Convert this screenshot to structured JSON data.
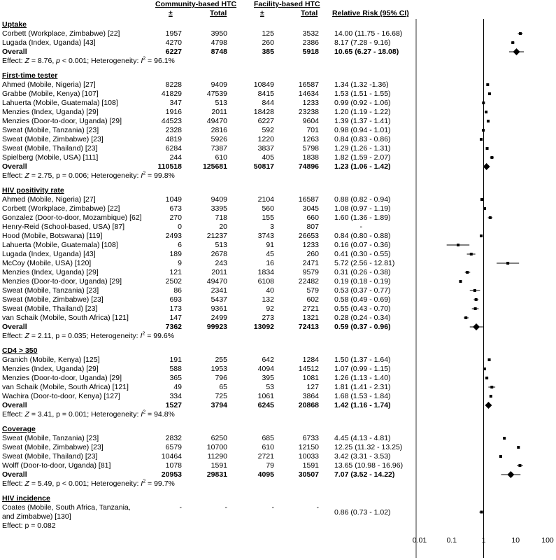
{
  "headers": {
    "community": "Community-based HTC",
    "facility": "Facility-based HTC",
    "plus_minus": "±",
    "total": "Total",
    "rr": "Relative Risk (95% CI)"
  },
  "chart_data": {
    "type": "forest",
    "x_scale": "log",
    "xlim": [
      0.01,
      100
    ],
    "reference_line": 1,
    "x_ticks": [
      "0.01",
      "0.1",
      "1",
      "10",
      "100"
    ],
    "sections": [
      {
        "title": "Uptake",
        "rows": [
          {
            "label": "Corbett (Workplace, Zimbabwe) [22]",
            "c_pos": "1957",
            "c_tot": "3950",
            "f_pos": "125",
            "f_tot": "3532",
            "rr_text": "14.00 (11.75 - 16.68)",
            "rr": 14.0,
            "lo": 11.75,
            "hi": 16.68
          },
          {
            "label": "Lugada (Index, Uganda) [43]",
            "c_pos": "4270",
            "c_tot": "4798",
            "f_pos": "260",
            "f_tot": "2386",
            "rr_text": "8.17 (7.28 - 9.16)",
            "rr": 8.17,
            "lo": 7.28,
            "hi": 9.16
          }
        ],
        "overall": {
          "label": "Overall",
          "c_pos": "6227",
          "c_tot": "8748",
          "f_pos": "385",
          "f_tot": "5918",
          "rr_text": "10.65 (6.27 - 18.08)",
          "rr": 10.65,
          "lo": 6.27,
          "hi": 18.08
        },
        "effect_pre": "Effect: ",
        "effect_z": "Z",
        "effect_mid": " = 8.76, ",
        "effect_p": "p",
        "effect_post": " < 0.001; Heterogeneity: ",
        "effect_i": "I",
        "effect_sup": "2",
        "effect_val": " = 96.1%"
      },
      {
        "title": "First-time tester",
        "rows": [
          {
            "label": "Ahmed (Mobile, Nigeria) [27]",
            "c_pos": "8228",
            "c_tot": "9409",
            "f_pos": "10849",
            "f_tot": "16587",
            "rr_text": "1.34 (1.32 -1.36)",
            "rr": 1.34,
            "lo": 1.32,
            "hi": 1.36
          },
          {
            "label": "Grabbe (Mobile, Kenya) [107]",
            "c_pos": "41829",
            "c_tot": "47539",
            "f_pos": "8415",
            "f_tot": "14634",
            "rr_text": "1.53 (1.51 - 1.55)",
            "rr": 1.53,
            "lo": 1.51,
            "hi": 1.55
          },
          {
            "label": "Lahuerta (Mobile, Guatemala) [108]",
            "c_pos": "347",
            "c_tot": "513",
            "f_pos": "844",
            "f_tot": "1233",
            "rr_text": "0.99 (0.92 - 1.06)",
            "rr": 0.99,
            "lo": 0.92,
            "hi": 1.06
          },
          {
            "label": "Menzies (Index, Uganda) [29]",
            "c_pos": "1916",
            "c_tot": "2011",
            "f_pos": "18428",
            "f_tot": "23238",
            "rr_text": "1.20 (1.19 - 1.22)",
            "rr": 1.2,
            "lo": 1.19,
            "hi": 1.22
          },
          {
            "label": "Menzies (Door-to-door, Uganda) [29]",
            "c_pos": "44523",
            "c_tot": "49470",
            "f_pos": "6227",
            "f_tot": "9604",
            "rr_text": "1.39 (1.37 - 1.41)",
            "rr": 1.39,
            "lo": 1.37,
            "hi": 1.41
          },
          {
            "label": "Sweat (Mobile, Tanzania) [23]",
            "c_pos": "2328",
            "c_tot": "2816",
            "f_pos": "592",
            "f_tot": "701",
            "rr_text": "0.98 (0.94 - 1.01)",
            "rr": 0.98,
            "lo": 0.94,
            "hi": 1.01
          },
          {
            "label": "Sweat (Mobile, Zimbabwe) [23]",
            "c_pos": "4819",
            "c_tot": "5926",
            "f_pos": "1220",
            "f_tot": "1263",
            "rr_text": "0.84 (0.83 - 0.86)",
            "rr": 0.84,
            "lo": 0.83,
            "hi": 0.86
          },
          {
            "label": "Sweat (Mobile, Thailand) [23]",
            "c_pos": "6284",
            "c_tot": "7387",
            "f_pos": "3837",
            "f_tot": "5798",
            "rr_text": "1.29 (1.26 - 1.31)",
            "rr": 1.29,
            "lo": 1.26,
            "hi": 1.31
          },
          {
            "label": "Spielberg (Mobile, USA) [111]",
            "c_pos": "244",
            "c_tot": "610",
            "f_pos": "405",
            "f_tot": "1838",
            "rr_text": "1.82 (1.59 - 2.07)",
            "rr": 1.82,
            "lo": 1.59,
            "hi": 2.07
          }
        ],
        "overall": {
          "label": "Overall",
          "c_pos": "110518",
          "c_tot": "125681",
          "f_pos": "50817",
          "f_tot": "74896",
          "rr_text": "1.23 (1.06 - 1.42)",
          "rr": 1.23,
          "lo": 1.06,
          "hi": 1.42
        },
        "effect_pre": "Effect: ",
        "effect_z": "Z",
        "effect_mid": " = 2.75, p = 0.006; Heterogeneity: ",
        "effect_p": "",
        "effect_post": "",
        "effect_i": "I",
        "effect_sup": "2",
        "effect_val": " = 99.8%"
      },
      {
        "title": "HIV positivity rate",
        "rows": [
          {
            "label": "Ahmed (Mobile, Nigeria) [27]",
            "c_pos": "1049",
            "c_tot": "9409",
            "f_pos": "2104",
            "f_tot": "16587",
            "rr_text": "0.88 (0.82 - 0.94)",
            "rr": 0.88,
            "lo": 0.82,
            "hi": 0.94
          },
          {
            "label": "Corbett (Workplace, Zimbabwe) [22]",
            "c_pos": "673",
            "c_tot": "3395",
            "f_pos": "560",
            "f_tot": "3045",
            "rr_text": "1.08 (0.97 - 1.19)",
            "rr": 1.08,
            "lo": 0.97,
            "hi": 1.19
          },
          {
            "label": "Gonzalez (Door-to-door, Mozambique) [62]",
            "c_pos": "270",
            "c_tot": "718",
            "f_pos": "155",
            "f_tot": "660",
            "rr_text": "1.60 (1.36 - 1.89)",
            "rr": 1.6,
            "lo": 1.36,
            "hi": 1.89
          },
          {
            "label": "Henry-Reid (School-based, USA) [87]",
            "c_pos": "0",
            "c_tot": "20",
            "f_pos": "3",
            "f_tot": "807",
            "rr_text": "-",
            "rr": null,
            "lo": null,
            "hi": null
          },
          {
            "label": "Hood (Mobile, Botswana) [119]",
            "c_pos": "2493",
            "c_tot": "21237",
            "f_pos": "3743",
            "f_tot": "26653",
            "rr_text": "0.84 (0.80 - 0.88)",
            "rr": 0.84,
            "lo": 0.8,
            "hi": 0.88
          },
          {
            "label": "Lahuerta (Mobile, Guatemala) [108]",
            "c_pos": "6",
            "c_tot": "513",
            "f_pos": "91",
            "f_tot": "1233",
            "rr_text": "0.16 (0.07 - 0.36)",
            "rr": 0.16,
            "lo": 0.07,
            "hi": 0.36
          },
          {
            "label": "Lugada (Index, Uganda) [43]",
            "c_pos": "189",
            "c_tot": "2678",
            "f_pos": "45",
            "f_tot": "260",
            "rr_text": "0.41 (0.30 - 0.55)",
            "rr": 0.41,
            "lo": 0.3,
            "hi": 0.55
          },
          {
            "label": "McCoy (Mobile, USA) [120]",
            "c_pos": "9",
            "c_tot": "243",
            "f_pos": "16",
            "f_tot": "2471",
            "rr_text": "5.72 (2.56 - 12.81)",
            "rr": 5.72,
            "lo": 2.56,
            "hi": 12.81
          },
          {
            "label": "Menzies (Index, Uganda) [29]",
            "c_pos": "121",
            "c_tot": "2011",
            "f_pos": "1834",
            "f_tot": "9579",
            "rr_text": "0.31 (0.26 - 0.38)",
            "rr": 0.31,
            "lo": 0.26,
            "hi": 0.38
          },
          {
            "label": "Menzies (Door-to-door, Uganda) [29]",
            "c_pos": "2502",
            "c_tot": "49470",
            "f_pos": "6108",
            "f_tot": "22482",
            "rr_text": "0.19 (0.18 - 0.19)",
            "rr": 0.19,
            "lo": 0.18,
            "hi": 0.19
          },
          {
            "label": "Sweat (Mobile, Tanzania) [23]",
            "c_pos": "86",
            "c_tot": "2341",
            "f_pos": "40",
            "f_tot": "579",
            "rr_text": "0.53 (0.37 - 0.77)",
            "rr": 0.53,
            "lo": 0.37,
            "hi": 0.77
          },
          {
            "label": "Sweat (Mobile, Zimbabwe) [23]",
            "c_pos": "693",
            "c_tot": "5437",
            "f_pos": "132",
            "f_tot": "602",
            "rr_text": "0.58 (0.49 - 0.69)",
            "rr": 0.58,
            "lo": 0.49,
            "hi": 0.69
          },
          {
            "label": "Sweat (Mobile, Thailand) [23]",
            "c_pos": "173",
            "c_tot": "9361",
            "f_pos": "92",
            "f_tot": "2721",
            "rr_text": "0.55 (0.43 - 0.70)",
            "rr": 0.55,
            "lo": 0.43,
            "hi": 0.7
          },
          {
            "label": "van Schaik (Mobile, South Africa) [121]",
            "c_pos": "147",
            "c_tot": "2499",
            "f_pos": "273",
            "f_tot": "1321",
            "rr_text": "0.28 (0.24 - 0.34)",
            "rr": 0.28,
            "lo": 0.24,
            "hi": 0.34
          }
        ],
        "overall": {
          "label": "Overall",
          "c_pos": "7362",
          "c_tot": "99923",
          "f_pos": "13092",
          "f_tot": "72413",
          "rr_text": "0.59 (0.37 - 0.96)",
          "rr": 0.59,
          "lo": 0.37,
          "hi": 0.96
        },
        "effect_pre": "Effect: ",
        "effect_z": "Z",
        "effect_mid": " = 2.11, p = 0.035; Heterogeneity: ",
        "effect_p": "",
        "effect_post": "",
        "effect_i": "I",
        "effect_sup": "2",
        "effect_val": " = 99.6%"
      },
      {
        "title": "CD4 > 350",
        "rows": [
          {
            "label": "Granich (Mobile, Kenya) [125]",
            "c_pos": "191",
            "c_tot": "255",
            "f_pos": "642",
            "f_tot": "1284",
            "rr_text": "1.50 (1.37 - 1.64)",
            "rr": 1.5,
            "lo": 1.37,
            "hi": 1.64
          },
          {
            "label": "Menzies (Index, Uganda) [29]",
            "c_pos": "588",
            "c_tot": "1953",
            "f_pos": "4094",
            "f_tot": "14512",
            "rr_text": "1.07 (0.99 - 1.15)",
            "rr": 1.07,
            "lo": 0.99,
            "hi": 1.15
          },
          {
            "label": "Menzies (Door-to-door, Uganda) [29]",
            "c_pos": "365",
            "c_tot": "796",
            "f_pos": "395",
            "f_tot": "1081",
            "rr_text": "1.26 (1.13 - 1.40)",
            "rr": 1.26,
            "lo": 1.13,
            "hi": 1.4
          },
          {
            "label": "van Schaik (Mobile, South Africa) [121]",
            "c_pos": "49",
            "c_tot": "65",
            "f_pos": "53",
            "f_tot": "127",
            "rr_text": "1.81 (1.41 - 2.31)",
            "rr": 1.81,
            "lo": 1.41,
            "hi": 2.31
          },
          {
            "label": "Wachira (Door-to-door, Kenya) [127]",
            "c_pos": "334",
            "c_tot": "725",
            "f_pos": "1061",
            "f_tot": "3864",
            "rr_text": "1.68 (1.53 - 1.84)",
            "rr": 1.68,
            "lo": 1.53,
            "hi": 1.84
          }
        ],
        "overall": {
          "label": "Overall",
          "c_pos": "1527",
          "c_tot": "3794",
          "f_pos": "6245",
          "f_tot": "20868",
          "rr_text": "1.42 (1.16 - 1.74)",
          "rr": 1.42,
          "lo": 1.16,
          "hi": 1.74
        },
        "effect_pre": "Effect: ",
        "effect_z": "Z",
        "effect_mid": " = 3.41, p = 0.001; Heterogeneity: ",
        "effect_p": "",
        "effect_post": "",
        "effect_i": "I",
        "effect_sup": "2",
        "effect_val": " = 94.8%"
      },
      {
        "title": "Coverage",
        "rows": [
          {
            "label": "Sweat (Mobile, Tanzania) [23]",
            "c_pos": "2832",
            "c_tot": "6250",
            "f_pos": "685",
            "f_tot": "6733",
            "rr_text": "4.45 (4.13 - 4.81)",
            "rr": 4.45,
            "lo": 4.13,
            "hi": 4.81
          },
          {
            "label": "Sweat (Mobile, Zimbabwe) [23]",
            "c_pos": "6579",
            "c_tot": "10700",
            "f_pos": "610",
            "f_tot": "12150",
            "rr_text": "12.25 (11.32 - 13.25)",
            "rr": 12.25,
            "lo": 11.32,
            "hi": 13.25
          },
          {
            "label": "Sweat (Mobile, Thailand) [23]",
            "c_pos": "10464",
            "c_tot": "11290",
            "f_pos": "2721",
            "f_tot": "10033",
            "rr_text": "3.42 (3.31 - 3.53)",
            "rr": 3.42,
            "lo": 3.31,
            "hi": 3.53
          },
          {
            "label": "Wolff (Door-to-door, Uganda) [81]",
            "c_pos": "1078",
            "c_tot": "1591",
            "f_pos": "79",
            "f_tot": "1591",
            "rr_text": "13.65 (10.98 - 16.96)",
            "rr": 13.65,
            "lo": 10.98,
            "hi": 16.96
          }
        ],
        "overall": {
          "label": "Overall",
          "c_pos": "20953",
          "c_tot": "29831",
          "f_pos": "4095",
          "f_tot": "30507",
          "rr_text": "7.07 (3.52 - 14.22)",
          "rr": 7.07,
          "lo": 3.52,
          "hi": 14.22
        },
        "effect_pre": "Effect: ",
        "effect_z": "Z",
        "effect_mid": " = 5.49, p < 0.001; Heterogeneity: ",
        "effect_p": "",
        "effect_post": "",
        "effect_i": "I",
        "effect_sup": "2",
        "effect_val": " = 99.7%"
      },
      {
        "title": "HIV incidence",
        "rows": [
          {
            "label": "Coates (Mobile, South Africa, Tanzania,",
            "label2": "and Zimbabwe) [130]",
            "c_pos": "-",
            "c_tot": "-",
            "f_pos": "-",
            "f_tot": "-",
            "rr_text": "0.86 (0.73 - 1.02)",
            "rr": 0.86,
            "lo": 0.73,
            "hi": 1.02
          }
        ],
        "overall": null,
        "effect_pre": "Effect: p = 0.082",
        "effect_z": "",
        "effect_mid": "",
        "effect_p": "",
        "effect_post": "",
        "effect_i": "",
        "effect_sup": "",
        "effect_val": ""
      }
    ]
  }
}
